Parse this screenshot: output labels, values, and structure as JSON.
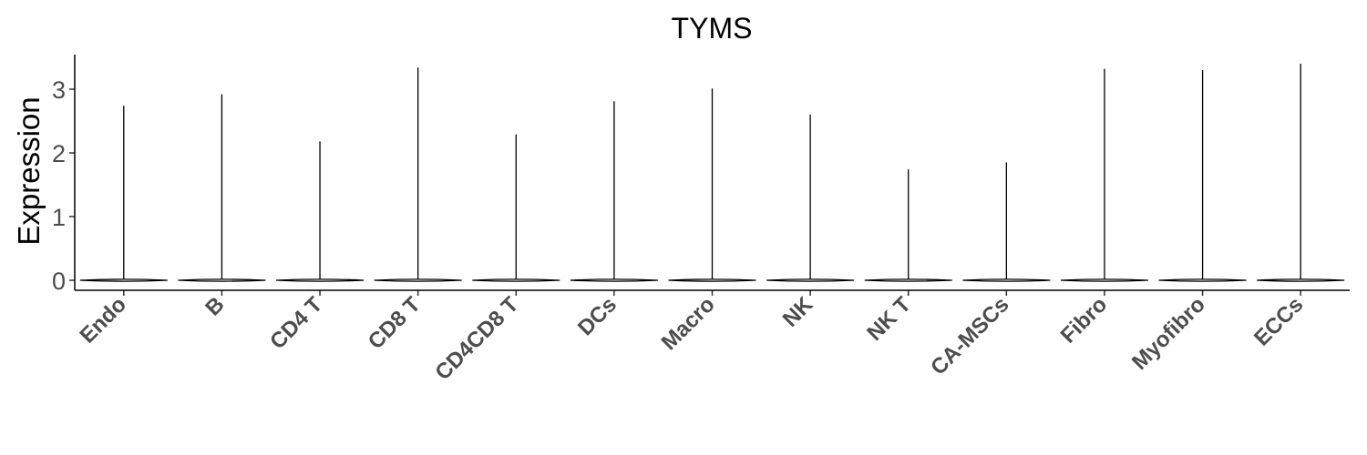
{
  "chart_data": {
    "type": "violin",
    "title": "TYMS",
    "xlabel": "",
    "ylabel": "Expression",
    "categories": [
      "Endo",
      "B",
      "CD4 T",
      "CD8 T",
      "CD4CD8 T",
      "DCs",
      "Macro",
      "NK",
      "NK T",
      "CA-MSCs",
      "Fibro",
      "Myofibro",
      "ECCs"
    ],
    "max_values": [
      2.74,
      2.92,
      2.18,
      3.34,
      2.29,
      2.81,
      3.01,
      2.6,
      1.74,
      1.85,
      3.32,
      3.3,
      3.4
    ],
    "bulk_value": 0,
    "yticks": [
      0,
      1,
      2,
      3
    ],
    "ylim": [
      -0.15,
      3.55
    ],
    "grid": false,
    "legend": "none"
  }
}
